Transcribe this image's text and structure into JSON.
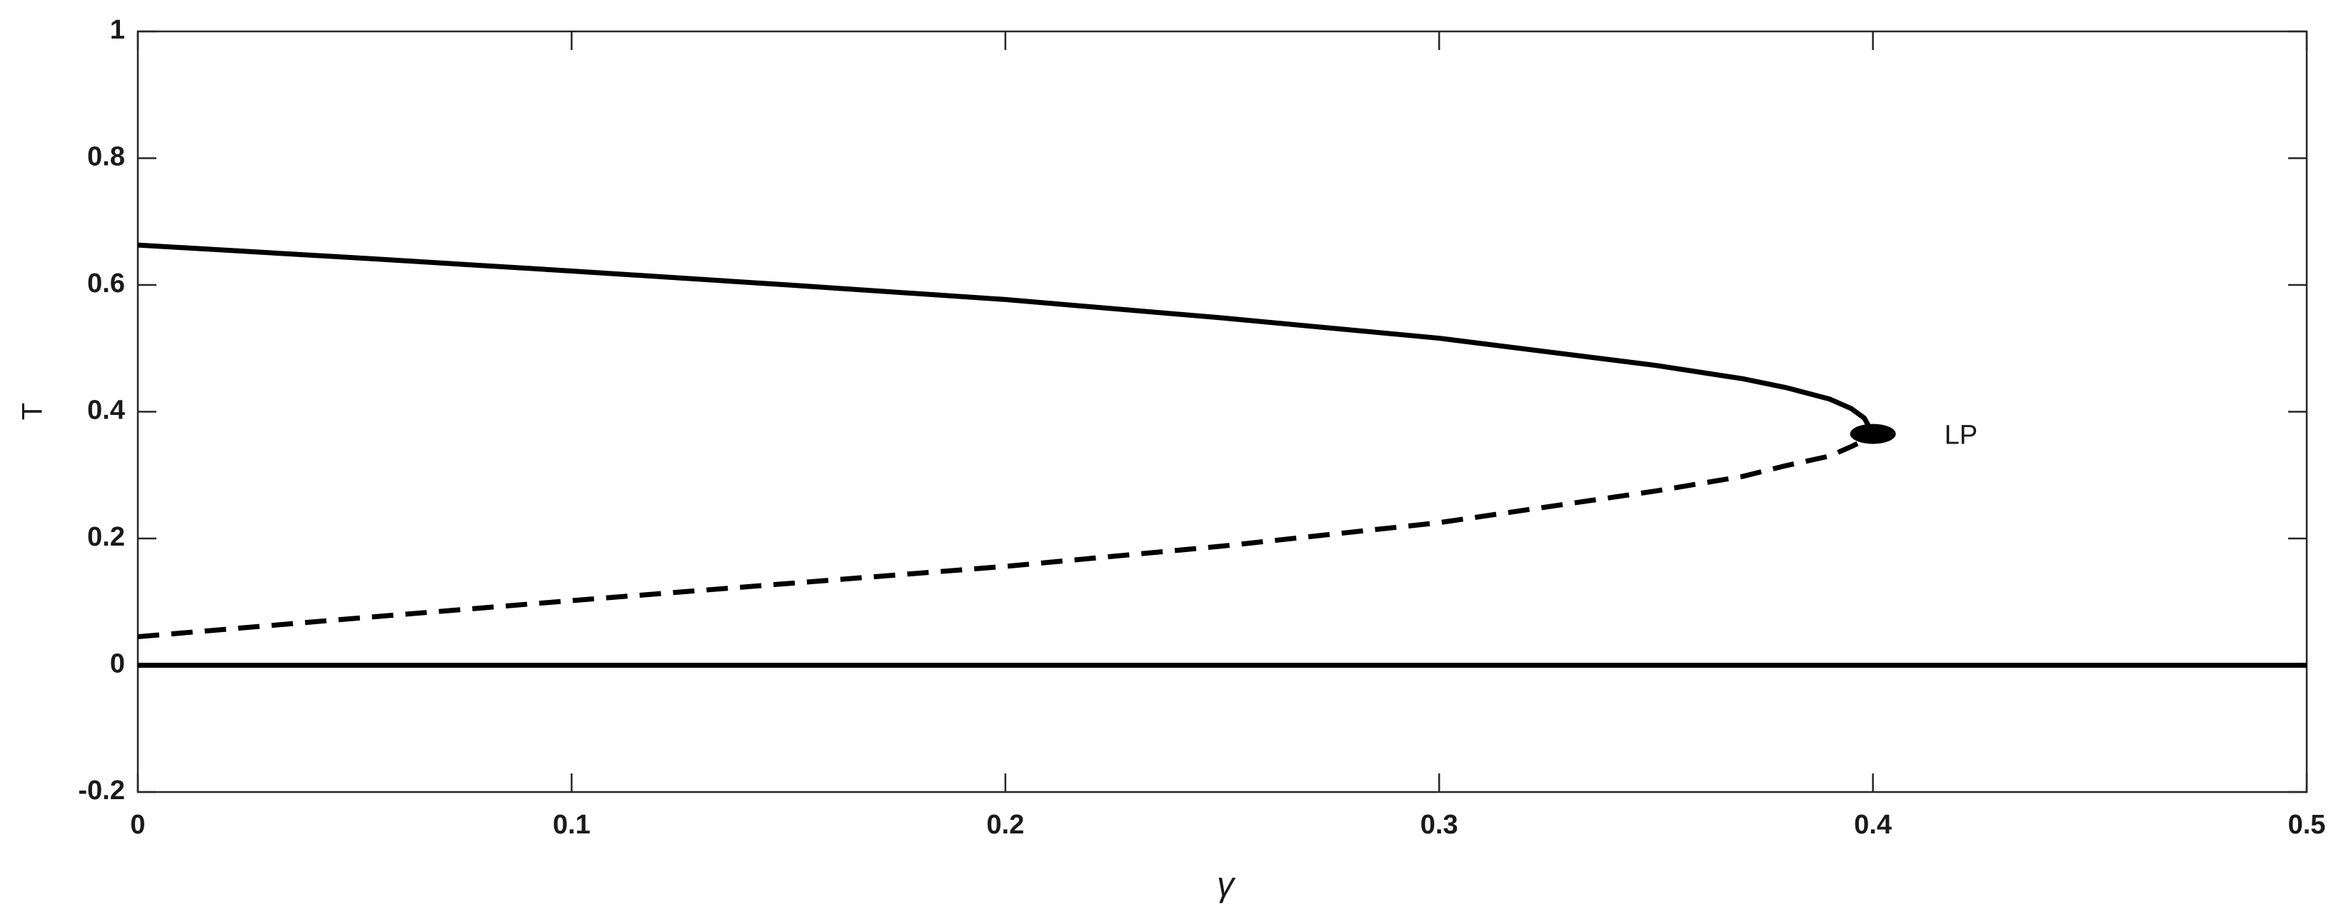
{
  "chart_data": {
    "type": "line",
    "xlabel": "γ",
    "ylabel": "T",
    "xlim": [
      0,
      0.5
    ],
    "ylim": [
      -0.2,
      1
    ],
    "xticks": [
      0,
      0.1,
      0.2,
      0.3,
      0.4,
      0.5
    ],
    "yticks": [
      -0.2,
      0,
      0.2,
      0.4,
      0.6,
      0.8,
      1
    ],
    "grid": false,
    "series": [
      {
        "color": "#000000",
        "style": "solid",
        "x": [
          0,
          0.05,
          0.1,
          0.15,
          0.2,
          0.25,
          0.3,
          0.35,
          0.37,
          0.38,
          0.39,
          0.395,
          0.398,
          0.4
        ],
        "values": [
          0.663,
          0.643,
          0.622,
          0.6,
          0.577,
          0.548,
          0.516,
          0.473,
          0.452,
          0.438,
          0.42,
          0.405,
          0.39,
          0.365
        ]
      },
      {
        "color": "#000000",
        "style": "dashed",
        "x": [
          0,
          0.05,
          0.1,
          0.15,
          0.2,
          0.25,
          0.3,
          0.35,
          0.37,
          0.38,
          0.39,
          0.395,
          0.398,
          0.4
        ],
        "values": [
          0.045,
          0.074,
          0.102,
          0.129,
          0.156,
          0.188,
          0.225,
          0.275,
          0.298,
          0.315,
          0.33,
          0.345,
          0.355,
          0.365
        ]
      },
      {
        "color": "#000000",
        "style": "solid",
        "x": [
          0,
          0.5
        ],
        "values": [
          0,
          0
        ]
      }
    ],
    "points": [
      {
        "x": 0.4,
        "y": 0.365,
        "label": "LP",
        "color": "#000000"
      }
    ]
  }
}
